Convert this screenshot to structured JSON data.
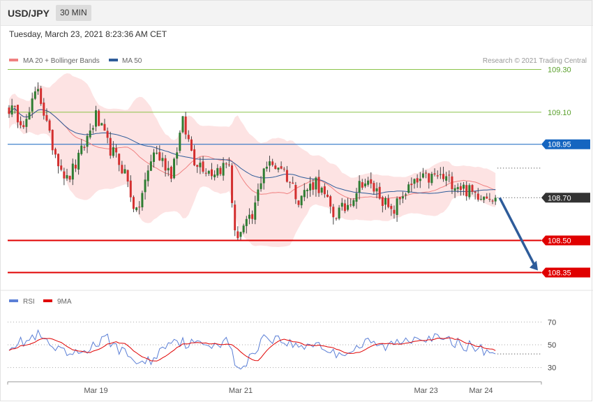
{
  "header": {
    "symbol": "USD/JPY",
    "timeframe": "30 MIN",
    "timestamp": "Tuesday, March 23, 2021 8:23:36 AM CET"
  },
  "credit": "Research © 2021 Trading Central",
  "colors": {
    "bollinger_fill": "#fde3e3",
    "ma20": "#f08080",
    "ma50": "#2e5c9a",
    "candle_up": "#2e7d32",
    "candle_down": "#d32f2f",
    "resistance": "#8bc34a",
    "pivot": "#1565c0",
    "support": "#e00000",
    "last_price": "#333333",
    "arrow": "#2e5c9a",
    "rsi": "#5b7fd6",
    "rsi_ma": "#e00000"
  },
  "chart_data": [
    {
      "type": "candlestick",
      "legend": [
        {
          "name": "MA 20 + Bollinger Bands",
          "color_key": "ma20"
        },
        {
          "name": "MA 50",
          "color_key": "ma50"
        }
      ],
      "ylim": [
        108.27,
        109.38
      ],
      "levels": [
        {
          "value": 109.3,
          "label": "109.30",
          "kind": "resistance"
        },
        {
          "value": 109.1,
          "label": "109.10",
          "kind": "resistance"
        },
        {
          "value": 108.95,
          "label": "108.95",
          "kind": "pivot"
        },
        {
          "value": 108.7,
          "label": "108.70",
          "kind": "last_price"
        },
        {
          "value": 108.5,
          "label": "108.50",
          "kind": "support"
        },
        {
          "value": 108.35,
          "label": "108.35",
          "kind": "support"
        }
      ],
      "close_anchors": [
        [
          0,
          109.12
        ],
        [
          6,
          109.05
        ],
        [
          10,
          109.22
        ],
        [
          14,
          108.98
        ],
        [
          20,
          108.78
        ],
        [
          24,
          108.88
        ],
        [
          30,
          109.08
        ],
        [
          34,
          108.95
        ],
        [
          40,
          108.82
        ],
        [
          44,
          108.62
        ],
        [
          50,
          108.92
        ],
        [
          56,
          108.82
        ],
        [
          60,
          109.05
        ],
        [
          64,
          108.88
        ],
        [
          70,
          108.82
        ],
        [
          76,
          108.86
        ],
        [
          78,
          108.52
        ],
        [
          84,
          108.6
        ],
        [
          88,
          108.85
        ],
        [
          94,
          108.85
        ],
        [
          100,
          108.7
        ],
        [
          106,
          108.78
        ],
        [
          112,
          108.62
        ],
        [
          116,
          108.65
        ],
        [
          122,
          108.78
        ],
        [
          128,
          108.72
        ],
        [
          132,
          108.62
        ],
        [
          136,
          108.72
        ],
        [
          142,
          108.78
        ],
        [
          148,
          108.8
        ],
        [
          154,
          108.77
        ],
        [
          160,
          108.72
        ],
        [
          166,
          108.72
        ],
        [
          168,
          108.68
        ]
      ],
      "forecast": {
        "from": 108.7,
        "to": 108.35
      }
    },
    {
      "type": "line",
      "title": "RSI",
      "legend": [
        {
          "name": "RSI",
          "color_key": "rsi"
        },
        {
          "name": "9MA",
          "color_key": "rsi_ma"
        }
      ],
      "ylim": [
        20,
        80
      ],
      "levels": [
        70,
        50,
        30
      ],
      "rsi_anchors": [
        [
          0,
          50
        ],
        [
          6,
          53
        ],
        [
          10,
          58
        ],
        [
          16,
          45
        ],
        [
          22,
          40
        ],
        [
          28,
          48
        ],
        [
          34,
          55
        ],
        [
          40,
          42
        ],
        [
          46,
          33
        ],
        [
          50,
          38
        ],
        [
          56,
          56
        ],
        [
          60,
          52
        ],
        [
          66,
          50
        ],
        [
          72,
          52
        ],
        [
          76,
          53
        ],
        [
          78,
          30
        ],
        [
          82,
          33
        ],
        [
          88,
          58
        ],
        [
          94,
          54
        ],
        [
          100,
          48
        ],
        [
          106,
          52
        ],
        [
          112,
          42
        ],
        [
          118,
          45
        ],
        [
          124,
          52
        ],
        [
          130,
          48
        ],
        [
          136,
          54
        ],
        [
          142,
          58
        ],
        [
          148,
          55
        ],
        [
          154,
          52
        ],
        [
          160,
          48
        ],
        [
          166,
          44
        ],
        [
          168,
          45
        ]
      ]
    }
  ],
  "x_axis": {
    "ticks": [
      {
        "label": "Mar 19",
        "bar": 30
      },
      {
        "label": "Mar 21",
        "bar": 80
      },
      {
        "label": "Mar 23",
        "bar": 144
      },
      {
        "label": "Mar 24",
        "bar": 163
      }
    ],
    "bar_count": 169
  }
}
